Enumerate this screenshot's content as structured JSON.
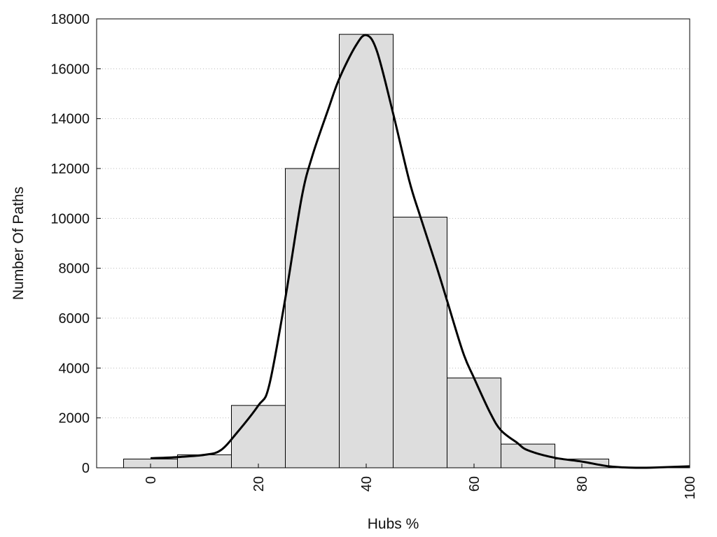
{
  "chart_data": {
    "type": "bar",
    "subtype": "histogram_with_density_curve",
    "title": "",
    "xlabel": "Hubs %",
    "ylabel": "Number Of Paths",
    "xlim": [
      -10,
      100
    ],
    "ylim": [
      0,
      18000
    ],
    "x_ticks": [
      0,
      20,
      40,
      60,
      80,
      100
    ],
    "y_ticks": [
      0,
      2000,
      4000,
      6000,
      8000,
      10000,
      12000,
      14000,
      16000,
      18000
    ],
    "grid": "horizontal dotted",
    "legend": "none",
    "bar_color": "#dddddd",
    "curve_color": "#000000",
    "bin_width": 10,
    "bins": [
      {
        "center": 0,
        "value": 350
      },
      {
        "center": 10,
        "value": 520
      },
      {
        "center": 20,
        "value": 2500
      },
      {
        "center": 30,
        "value": 12000
      },
      {
        "center": 40,
        "value": 17380
      },
      {
        "center": 50,
        "value": 10050
      },
      {
        "center": 60,
        "value": 3600
      },
      {
        "center": 70,
        "value": 950
      },
      {
        "center": 80,
        "value": 350
      },
      {
        "center": 90,
        "value": 30
      }
    ],
    "curve": {
      "x": [
        0,
        5,
        10,
        13,
        16,
        20,
        22,
        25,
        28,
        30,
        33,
        35,
        38,
        40,
        42,
        45,
        48,
        50,
        53,
        55,
        58,
        60,
        63,
        65,
        68,
        70,
        75,
        80,
        85,
        90,
        95,
        100
      ],
      "y": [
        380,
        430,
        520,
        700,
        1400,
        2500,
        3300,
        6800,
        10800,
        12500,
        14400,
        15600,
        16900,
        17350,
        16700,
        14200,
        11500,
        10100,
        8100,
        6700,
        4600,
        3600,
        2200,
        1500,
        1000,
        700,
        400,
        250,
        60,
        0,
        20,
        60
      ]
    }
  }
}
